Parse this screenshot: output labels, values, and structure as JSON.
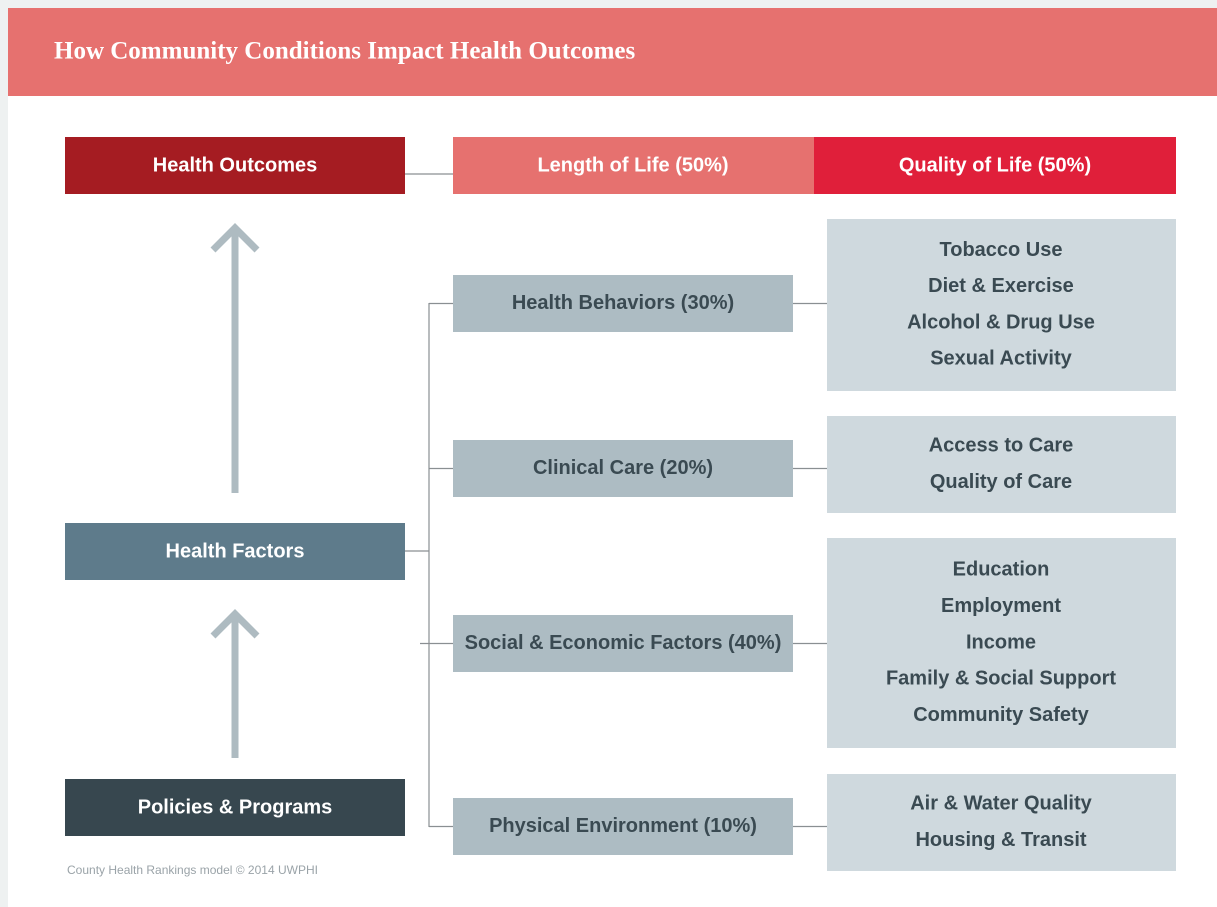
{
  "header": {
    "title": "How Community Conditions Impact Health Outcomes"
  },
  "outcomes": {
    "label": "Health Outcomes",
    "parts": [
      "Length of Life (50%)",
      "Quality of Life (50%)"
    ]
  },
  "health_factors": {
    "label": "Health Factors"
  },
  "policies": {
    "label": "Policies & Programs"
  },
  "factors": [
    {
      "label": "Health Behaviors (30%)",
      "items": [
        "Tobacco Use",
        "Diet & Exercise",
        "Alcohol & Drug Use",
        "Sexual Activity"
      ]
    },
    {
      "label": "Clinical Care (20%)",
      "items": [
        "Access to Care",
        "Quality of Care"
      ]
    },
    {
      "label": "Social & Economic Factors (40%)",
      "items": [
        "Education",
        "Employment",
        "Income",
        "Family & Social Support",
        "Community Safety"
      ]
    },
    {
      "label": "Physical Environment (10%)",
      "items": [
        "Air & Water Quality",
        "Housing & Transit"
      ]
    }
  ],
  "footer": "County Health Rankings model © 2014 UWPHI"
}
